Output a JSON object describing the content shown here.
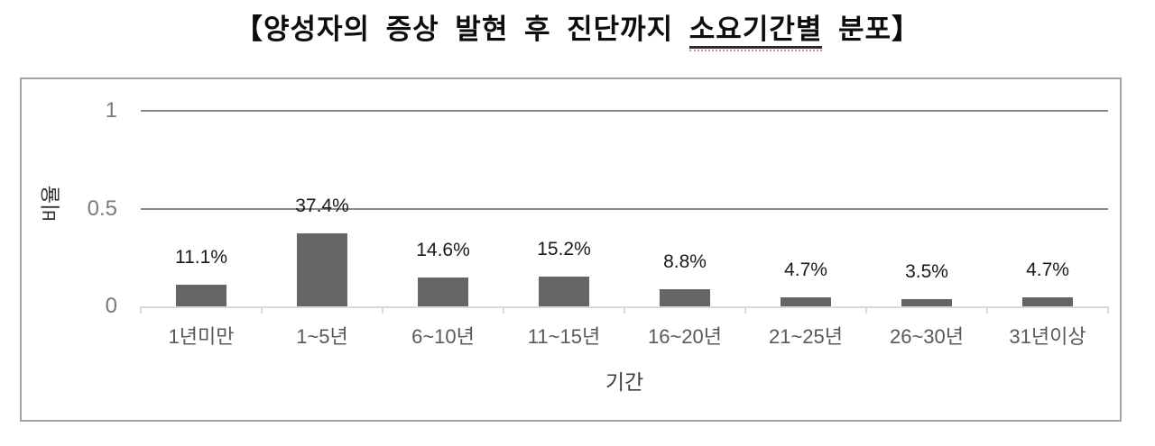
{
  "title": {
    "prefix": "【양성자의 증상 발현 후 진단까지 ",
    "underlined": "소요기간별",
    "suffix": " 분포】"
  },
  "chart_data": {
    "type": "bar",
    "title": "양성자의 증상 발현 후 진단까지 소요기간별 분포",
    "categories": [
      "1년미만",
      "1~5년",
      "6~10년",
      "11~15년",
      "16~20년",
      "21~25년",
      "26~30년",
      "31년이상"
    ],
    "values": [
      0.111,
      0.374,
      0.146,
      0.152,
      0.088,
      0.047,
      0.035,
      0.047
    ],
    "value_labels": [
      "11.1%",
      "37.4%",
      "14.6%",
      "15.2%",
      "8.8%",
      "4.7%",
      "3.5%",
      "4.7%"
    ],
    "xlabel": "기간",
    "ylabel": "비율",
    "ylim": [
      0,
      1
    ],
    "yticks": [
      {
        "value": 0,
        "label": "0"
      },
      {
        "value": 0.5,
        "label": "0.5"
      },
      {
        "value": 1,
        "label": "1"
      }
    ],
    "grid": "horizontal",
    "legend": "none",
    "colors": {
      "bar": "#666666",
      "gridline": "#8a8a8a",
      "axis_line": "#d9d9d9",
      "x_tick_label": "#595959",
      "y_tick_label": "#7a7a7a",
      "value_label": "#1a1a1a",
      "frame_border": "#a3a3a3",
      "title_text": "#0d0d0d",
      "underline_solid": "#2b2b2b",
      "underline_dotted": "#d98c8c"
    }
  }
}
